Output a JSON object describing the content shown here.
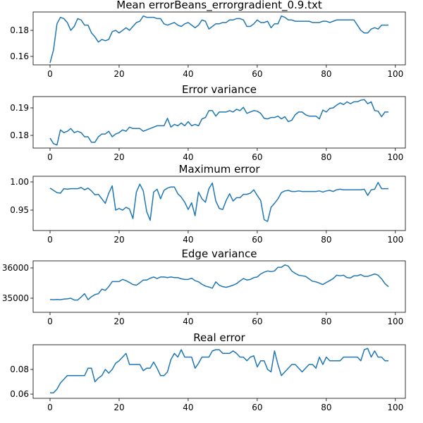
{
  "chart_data": [
    {
      "type": "line",
      "title": "Mean errorBeans_errorgradient_0.9.txt",
      "x": [
        0,
        1,
        2,
        3,
        4,
        5,
        6,
        7,
        8,
        9,
        10,
        11,
        12,
        13,
        14,
        15,
        16,
        17,
        18,
        19,
        20,
        21,
        22,
        23,
        24,
        25,
        26,
        27,
        28,
        29,
        30,
        31,
        32,
        33,
        34,
        35,
        36,
        37,
        38,
        39,
        40,
        41,
        42,
        43,
        44,
        45,
        46,
        47,
        48,
        49,
        50,
        51,
        52,
        53,
        54,
        55,
        56,
        57,
        58,
        59,
        60,
        61,
        62,
        63,
        64,
        65,
        66,
        67,
        68,
        69,
        70,
        71,
        72,
        73,
        74,
        75,
        76,
        77,
        78,
        79,
        80,
        81,
        82,
        83,
        84,
        85,
        86,
        87,
        88,
        89,
        90,
        91,
        92,
        93,
        94,
        95,
        96,
        97,
        98
      ],
      "values": [
        0.155,
        0.165,
        0.185,
        0.19,
        0.189,
        0.186,
        0.18,
        0.183,
        0.189,
        0.188,
        0.184,
        0.184,
        0.178,
        0.175,
        0.171,
        0.173,
        0.172,
        0.173,
        0.179,
        0.18,
        0.178,
        0.18,
        0.182,
        0.18,
        0.183,
        0.186,
        0.187,
        0.191,
        0.19,
        0.19,
        0.19,
        0.189,
        0.189,
        0.185,
        0.184,
        0.185,
        0.186,
        0.184,
        0.183,
        0.185,
        0.186,
        0.184,
        0.182,
        0.184,
        0.188,
        0.187,
        0.181,
        0.183,
        0.185,
        0.185,
        0.186,
        0.186,
        0.188,
        0.188,
        0.189,
        0.189,
        0.188,
        0.183,
        0.183,
        0.185,
        0.188,
        0.186,
        0.186,
        0.187,
        0.182,
        0.185,
        0.185,
        0.191,
        0.19,
        0.188,
        0.188,
        0.187,
        0.187,
        0.187,
        0.187,
        0.187,
        0.186,
        0.186,
        0.186,
        0.187,
        0.187,
        0.186,
        0.187,
        0.188,
        0.188,
        0.188,
        0.188,
        0.188,
        0.188,
        0.184,
        0.18,
        0.178,
        0.178,
        0.181,
        0.182,
        0.181,
        0.184,
        0.184,
        0.184
      ],
      "color": "#1f77b4",
      "xlim": [
        -4.9,
        102.9
      ],
      "xticks": [
        0,
        20,
        40,
        60,
        80,
        100
      ],
      "ylim": [
        0.1535,
        0.1941
      ],
      "yticks": [
        0.16,
        0.18
      ]
    },
    {
      "type": "line",
      "title": "Error variance",
      "x": [
        0,
        1,
        2,
        3,
        4,
        5,
        6,
        7,
        8,
        9,
        10,
        11,
        12,
        13,
        14,
        15,
        16,
        17,
        18,
        19,
        20,
        21,
        22,
        23,
        24,
        25,
        26,
        27,
        28,
        29,
        30,
        31,
        32,
        33,
        34,
        35,
        36,
        37,
        38,
        39,
        40,
        41,
        42,
        43,
        44,
        45,
        46,
        47,
        48,
        49,
        50,
        51,
        52,
        53,
        54,
        55,
        56,
        57,
        58,
        59,
        60,
        61,
        62,
        63,
        64,
        65,
        66,
        67,
        68,
        69,
        70,
        71,
        72,
        73,
        74,
        75,
        76,
        77,
        78,
        79,
        80,
        81,
        82,
        83,
        84,
        85,
        86,
        87,
        88,
        89,
        90,
        91,
        92,
        93,
        94,
        95,
        96,
        97,
        98
      ],
      "values": [
        0.179,
        0.177,
        0.1765,
        0.182,
        0.181,
        0.1815,
        0.1825,
        0.181,
        0.1815,
        0.181,
        0.1795,
        0.1795,
        0.1775,
        0.1775,
        0.1795,
        0.1805,
        0.1805,
        0.1815,
        0.1795,
        0.1805,
        0.181,
        0.182,
        0.1815,
        0.183,
        0.1825,
        0.1825,
        0.1825,
        0.1815,
        0.182,
        0.1825,
        0.183,
        0.1835,
        0.1835,
        0.1835,
        0.1862,
        0.183,
        0.184,
        0.1835,
        0.1845,
        0.1835,
        0.185,
        0.1835,
        0.184,
        0.1835,
        0.186,
        0.1865,
        0.189,
        0.189,
        0.187,
        0.1885,
        0.1885,
        0.1885,
        0.189,
        0.1885,
        0.1895,
        0.189,
        0.1902,
        0.188,
        0.1885,
        0.189,
        0.1888,
        0.188,
        0.1862,
        0.186,
        0.1865,
        0.1865,
        0.187,
        0.186,
        0.1868,
        0.185,
        0.1855,
        0.1875,
        0.1885,
        0.1885,
        0.1875,
        0.187,
        0.187,
        0.187,
        0.186,
        0.1892,
        0.1885,
        0.1898,
        0.19,
        0.191,
        0.1918,
        0.1912,
        0.1922,
        0.1915,
        0.1922,
        0.1922,
        0.1928,
        0.193,
        0.1915,
        0.1922,
        0.189,
        0.1888,
        0.1868,
        0.1885,
        0.1885
      ],
      "color": "#1f77b4",
      "xlim": [
        -4.9,
        102.9
      ],
      "xticks": [
        0,
        20,
        40,
        60,
        80,
        100
      ],
      "ylim": [
        0.1754,
        0.1941
      ],
      "yticks": [
        0.18,
        0.19
      ]
    },
    {
      "type": "line",
      "title": "Maximum error",
      "x": [
        0,
        1,
        2,
        3,
        4,
        5,
        6,
        7,
        8,
        9,
        10,
        11,
        12,
        13,
        14,
        15,
        16,
        17,
        18,
        19,
        20,
        21,
        22,
        23,
        24,
        25,
        26,
        27,
        28,
        29,
        30,
        31,
        32,
        33,
        34,
        35,
        36,
        37,
        38,
        39,
        40,
        41,
        42,
        43,
        44,
        45,
        46,
        47,
        48,
        49,
        50,
        51,
        52,
        53,
        54,
        55,
        56,
        57,
        58,
        59,
        60,
        61,
        62,
        63,
        64,
        65,
        66,
        67,
        68,
        69,
        70,
        71,
        72,
        73,
        74,
        75,
        76,
        77,
        78,
        79,
        80,
        81,
        82,
        83,
        84,
        85,
        86,
        87,
        88,
        89,
        90,
        91,
        92,
        93,
        94,
        95,
        96,
        97,
        98
      ],
      "values": [
        0.989,
        0.985,
        0.981,
        0.98,
        0.988,
        0.987,
        0.988,
        0.988,
        0.988,
        0.99,
        0.986,
        0.989,
        0.984,
        0.977,
        0.978,
        0.97,
        0.962,
        0.98,
        0.993,
        0.95,
        0.953,
        0.95,
        0.955,
        0.952,
        0.935,
        0.982,
        0.996,
        0.984,
        0.947,
        0.932,
        0.982,
        0.987,
        0.97,
        0.985,
        0.989,
        0.991,
        0.991,
        0.979,
        0.973,
        0.964,
        0.951,
        0.963,
        0.94,
        0.982,
        0.97,
        0.964,
        0.988,
        0.998,
        0.966,
        0.953,
        0.951,
        0.967,
        0.979,
        0.966,
        0.972,
        0.972,
        0.978,
        0.978,
        0.98,
        0.986,
        0.976,
        0.967,
        0.933,
        0.93,
        0.955,
        0.962,
        0.97,
        0.981,
        0.984,
        0.985,
        0.983,
        0.983,
        0.984,
        0.983,
        0.983,
        0.983,
        0.983,
        0.983,
        0.984,
        0.982,
        0.984,
        0.985,
        0.983,
        0.986,
        0.987,
        0.986,
        0.986,
        0.986,
        0.986,
        0.986,
        0.986,
        0.987,
        0.976,
        0.986,
        0.987,
        0.999,
        0.988,
        0.988,
        0.988
      ],
      "color": "#1f77b4",
      "xlim": [
        -4.9,
        102.9
      ],
      "xticks": [
        0,
        20,
        40,
        60,
        80,
        100
      ],
      "ylim": [
        0.9138,
        1.01
      ],
      "yticks": [
        0.95,
        {
          "value": 1,
          "label": "1.00"
        }
      ]
    },
    {
      "type": "line",
      "title": "Edge variance",
      "x": [
        0,
        1,
        2,
        3,
        4,
        5,
        6,
        7,
        8,
        9,
        10,
        11,
        12,
        13,
        14,
        15,
        16,
        17,
        18,
        19,
        20,
        21,
        22,
        23,
        24,
        25,
        26,
        27,
        28,
        29,
        30,
        31,
        32,
        33,
        34,
        35,
        36,
        37,
        38,
        39,
        40,
        41,
        42,
        43,
        44,
        45,
        46,
        47,
        48,
        49,
        50,
        51,
        52,
        53,
        54,
        55,
        56,
        57,
        58,
        59,
        60,
        61,
        62,
        63,
        64,
        65,
        66,
        67,
        68,
        69,
        70,
        71,
        72,
        73,
        74,
        75,
        76,
        77,
        78,
        79,
        80,
        81,
        82,
        83,
        84,
        85,
        86,
        87,
        88,
        89,
        90,
        91,
        92,
        93,
        94,
        95,
        96,
        97,
        98
      ],
      "values": [
        34960,
        34950,
        34960,
        34950,
        34970,
        34980,
        35000,
        34940,
        34940,
        35040,
        35150,
        34950,
        35050,
        35120,
        35150,
        35300,
        35260,
        35380,
        35550,
        35550,
        35550,
        35620,
        35580,
        35520,
        35450,
        35430,
        35510,
        35600,
        35600,
        35660,
        35700,
        35650,
        35700,
        35700,
        35680,
        35700,
        35680,
        35680,
        35640,
        35620,
        35620,
        35660,
        35580,
        35540,
        35460,
        35400,
        35370,
        35330,
        35540,
        35430,
        35380,
        35360,
        35390,
        35430,
        35480,
        35570,
        35650,
        35600,
        35620,
        35680,
        35700,
        35800,
        35860,
        35900,
        35880,
        35900,
        36020,
        36020,
        36100,
        36060,
        35900,
        35820,
        35760,
        35740,
        35720,
        35640,
        35560,
        35540,
        35500,
        35450,
        35520,
        35580,
        35650,
        35760,
        35740,
        35760,
        35680,
        35670,
        35740,
        35740,
        35780,
        35720,
        35720,
        35760,
        35800,
        35760,
        35640,
        35480,
        35380
      ],
      "color": "#1f77b4",
      "xlim": [
        -4.9,
        102.9
      ],
      "xticks": [
        0,
        20,
        40,
        60,
        80,
        100
      ],
      "ylim": [
        34535,
        36233
      ],
      "yticks": [
        35000,
        36000
      ]
    },
    {
      "type": "line",
      "title": "Real error",
      "x": [
        0,
        1,
        2,
        3,
        4,
        5,
        6,
        7,
        8,
        9,
        10,
        11,
        12,
        13,
        14,
        15,
        16,
        17,
        18,
        19,
        20,
        21,
        22,
        23,
        24,
        25,
        26,
        27,
        28,
        29,
        30,
        31,
        32,
        33,
        34,
        35,
        36,
        37,
        38,
        39,
        40,
        41,
        42,
        43,
        44,
        45,
        46,
        47,
        48,
        49,
        50,
        51,
        52,
        53,
        54,
        55,
        56,
        57,
        58,
        59,
        60,
        61,
        62,
        63,
        64,
        65,
        66,
        67,
        68,
        69,
        70,
        71,
        72,
        73,
        74,
        75,
        76,
        77,
        78,
        79,
        80,
        81,
        82,
        83,
        84,
        85,
        86,
        87,
        88,
        89,
        90,
        91,
        92,
        93,
        94,
        95,
        96,
        97,
        98
      ],
      "values": [
        0.061,
        0.061,
        0.064,
        0.069,
        0.072,
        0.075,
        0.075,
        0.075,
        0.075,
        0.075,
        0.075,
        0.081,
        0.081,
        0.07,
        0.073,
        0.075,
        0.08,
        0.077,
        0.08,
        0.085,
        0.087,
        0.09,
        0.093,
        0.084,
        0.084,
        0.084,
        0.084,
        0.079,
        0.081,
        0.081,
        0.086,
        0.081,
        0.075,
        0.075,
        0.078,
        0.088,
        0.093,
        0.09,
        0.096,
        0.09,
        0.09,
        0.09,
        0.081,
        0.085,
        0.09,
        0.09,
        0.09,
        0.095,
        0.096,
        0.096,
        0.093,
        0.093,
        0.093,
        0.095,
        0.093,
        0.09,
        0.09,
        0.087,
        0.09,
        0.091,
        0.082,
        0.087,
        0.087,
        0.08,
        0.078,
        0.095,
        0.084,
        0.075,
        0.078,
        0.081,
        0.084,
        0.084,
        0.081,
        0.078,
        0.081,
        0.084,
        0.084,
        0.081,
        0.09,
        0.084,
        0.09,
        0.087,
        0.087,
        0.087,
        0.087,
        0.09,
        0.09,
        0.09,
        0.09,
        0.09,
        0.087,
        0.096,
        0.097,
        0.09,
        0.095,
        0.09,
        0.09,
        0.087,
        0.087
      ],
      "color": "#1f77b4",
      "xlim": [
        -4.9,
        102.9
      ],
      "xticks": [
        0,
        20,
        40,
        60,
        80,
        100
      ],
      "ylim": [
        0.0566,
        0.1
      ],
      "yticks": [
        0.06,
        0.08
      ]
    }
  ]
}
